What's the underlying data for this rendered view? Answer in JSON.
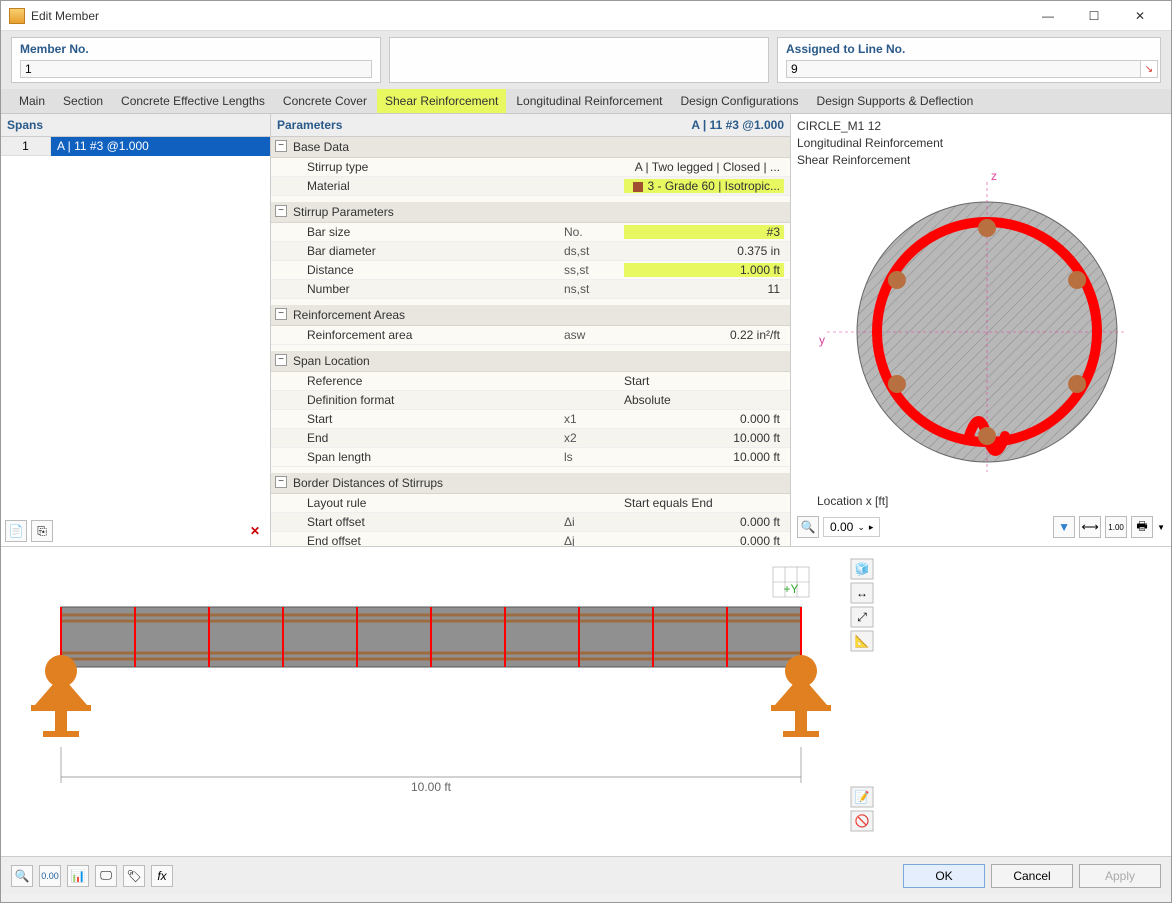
{
  "window": {
    "title": "Edit Member"
  },
  "header": {
    "member_no_label": "Member No.",
    "member_no_value": "1",
    "assigned_label": "Assigned to Line No.",
    "assigned_value": "9"
  },
  "tabs": {
    "items": [
      "Main",
      "Section",
      "Concrete Effective Lengths",
      "Concrete Cover",
      "Shear Reinforcement",
      "Longitudinal Reinforcement",
      "Design Configurations",
      "Design Supports & Deflection"
    ],
    "active_index": 4
  },
  "spans": {
    "header": "Spans",
    "rows": [
      {
        "num": "1",
        "text": "A | 11 #3 @1.000"
      }
    ]
  },
  "parameters": {
    "header_left": "Parameters",
    "header_right": "A | 11 #3 @1.000",
    "groups": [
      {
        "title": "Base Data",
        "rows": [
          {
            "name": "Stirrup type",
            "sym": "",
            "val": "A | Two legged | Closed | ..."
          },
          {
            "name": "Material",
            "sym": "",
            "val": "3 - Grade 60 | Isotropic...",
            "hl": true,
            "swatch": true
          }
        ]
      },
      {
        "title": "Stirrup Parameters",
        "rows": [
          {
            "name": "Bar size",
            "sym": "No.",
            "val": "#3",
            "hl": true
          },
          {
            "name": "Bar diameter",
            "sym": "ds,st",
            "val": "0.375 in"
          },
          {
            "name": "Distance",
            "sym": "ss,st",
            "val": "1.000 ft",
            "hl": true
          },
          {
            "name": "Number",
            "sym": "ns,st",
            "val": "11"
          }
        ]
      },
      {
        "title": "Reinforcement Areas",
        "rows": [
          {
            "name": "Reinforcement area",
            "sym": "asw",
            "val": "0.22 in²/ft"
          }
        ]
      },
      {
        "title": "Span Location",
        "rows": [
          {
            "name": "Reference",
            "sym": "",
            "val": "Start",
            "left": true
          },
          {
            "name": "Definition format",
            "sym": "",
            "val": "Absolute",
            "left": true
          },
          {
            "name": "Start",
            "sym": "x1",
            "val": "0.000 ft"
          },
          {
            "name": "End",
            "sym": "x2",
            "val": "10.000 ft"
          },
          {
            "name": "Span length",
            "sym": "ls",
            "val": "10.000 ft"
          }
        ]
      },
      {
        "title": "Border Distances of Stirrups",
        "rows": [
          {
            "name": "Layout rule",
            "sym": "",
            "val": "Start equals End",
            "left": true
          },
          {
            "name": "Start offset",
            "sym": "Δi",
            "val": "0.000 ft"
          },
          {
            "name": "End offset",
            "sym": "Δj",
            "val": "0.000 ft"
          }
        ]
      }
    ]
  },
  "section_info": {
    "name": "CIRCLE_M1 12",
    "long_reinf": "Longitudinal Reinforcement",
    "shear_reinf": "Shear Reinforcement",
    "location_label": "Location x [ft]",
    "location_value": "0.00",
    "circle": {
      "outer_fill": "#a0a0a0",
      "stirrup_color": "#ff0000",
      "rebar_color": "#b87040",
      "rebar_count": 6,
      "z_label": "z",
      "y_label": "y"
    }
  },
  "preview": {
    "beam_length_label": "10.00 ft",
    "stirrup_count": 11,
    "beam_color": "#909090",
    "rebar_color": "#9c6b3f",
    "stirrup_color": "#ff0000",
    "support_color": "#e08020"
  },
  "buttons": {
    "ok": "OK",
    "cancel": "Cancel",
    "apply": "Apply"
  }
}
